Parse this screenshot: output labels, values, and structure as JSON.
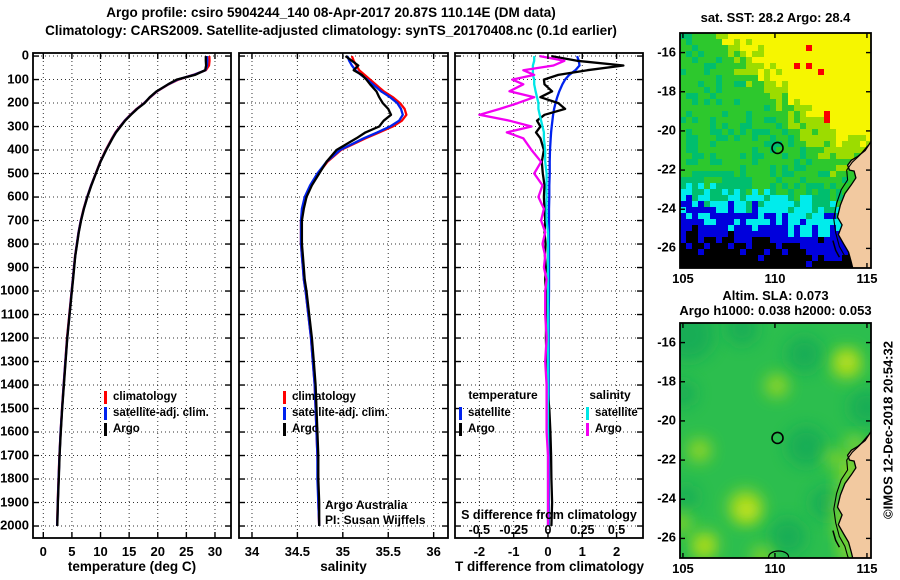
{
  "title": {
    "line1": "Argo profile: csiro 5904244_140 08-Apr-2017 20.87S 110.14E (DM data)",
    "line2": "Climatology: CARS2009. Satellite-adjusted climatology: synTS_20170408.nc (0.1d earlier)"
  },
  "watermark": "©IMOS 12-Dec-2018 20:54:32",
  "annotations": {
    "credit_line1": "Argo Australia",
    "credit_line2": "PI: Susan Wijffels",
    "s_axis_label": "S difference from climatology",
    "s_axis_ticks": [
      "-0.5",
      "-0.25",
      "0",
      "0.25",
      "0.5"
    ],
    "s_axis_tick_values": [
      -0.5,
      -0.25,
      0,
      0.25,
      0.5
    ]
  },
  "colors": {
    "climatology": "#ff0000",
    "satellite": "#0022ee",
    "argo": "#000000",
    "sat_salinity": "#00e6e6",
    "argo_salinity": "#f200f2",
    "land": "#f2c9a0",
    "map_sea_palette": [
      "#000000",
      "#0000dc",
      "#00ecec",
      "#00be6e",
      "#2dc82d",
      "#9cdc00",
      "#f6f600"
    ],
    "flag_red": "#fa0000",
    "sla_base": "#2cbe4e",
    "sla_teal": "#14ac56",
    "sla_ygreen": "#aadc1e",
    "sla_yellow": "#e2ea14"
  },
  "chart_data": {
    "type": "line",
    "orientation": "profile-vs-depth",
    "depth_ticks": [
      0,
      100,
      200,
      300,
      400,
      500,
      600,
      700,
      800,
      900,
      1000,
      1100,
      1200,
      1300,
      1400,
      1500,
      1600,
      1700,
      1800,
      1900,
      2000
    ],
    "depths": [
      0,
      20,
      40,
      60,
      80,
      100,
      120,
      150,
      175,
      200,
      225,
      250,
      275,
      300,
      325,
      350,
      400,
      450,
      500,
      550,
      600,
      650,
      700,
      750,
      800,
      850,
      900,
      950,
      1000,
      1100,
      1200,
      1300,
      1400,
      1500,
      1600,
      1700,
      1800,
      1900,
      2000
    ],
    "panels": [
      {
        "id": "temperature",
        "xlabel": "temperature (deg C)",
        "xtick_labels": [
          "0",
          "5",
          "10",
          "15",
          "20",
          "25",
          "30"
        ],
        "xtick_values": [
          0,
          5,
          10,
          15,
          20,
          25,
          30
        ],
        "xlim": [
          -1.8,
          32.8
        ],
        "legend": [
          {
            "label": "climatology",
            "color": "#ff0000"
          },
          {
            "label": "satellite-adj. clim.",
            "color": "#0022ee"
          },
          {
            "label": "Argo",
            "color": "#000000"
          }
        ],
        "series": [
          {
            "name": "climatology",
            "color": "#ff0000",
            "values": [
              29.0,
              29.05,
              28.95,
              28.4,
              26.2,
              23.6,
              21.9,
              19.9,
              18.7,
              17.6,
              16.3,
              15.2,
              14.2,
              13.4,
              12.6,
              12.0,
              10.9,
              9.95,
              9.15,
              8.35,
              7.65,
              7.05,
              6.55,
              6.15,
              5.85,
              5.55,
              5.35,
              5.15,
              4.95,
              4.55,
              4.15,
              3.85,
              3.55,
              3.27,
              3.02,
              2.82,
              2.66,
              2.52,
              2.42
            ]
          },
          {
            "name": "satellite-adj-clim",
            "color": "#0022ee",
            "values": [
              28.6,
              28.65,
              28.6,
              28.35,
              26.3,
              23.45,
              21.85,
              19.85,
              18.65,
              17.65,
              16.35,
              15.25,
              14.25,
              13.45,
              12.65,
              12.05,
              10.95,
              9.97,
              9.17,
              8.37,
              7.67,
              7.07,
              6.57,
              6.17,
              5.87,
              5.57,
              5.37,
              5.17,
              4.97,
              4.57,
              4.17,
              3.87,
              3.57,
              3.28,
              3.03,
              2.83,
              2.67,
              2.53,
              2.43
            ]
          },
          {
            "name": "argo",
            "color": "#000000",
            "values": [
              28.4,
              28.4,
              28.45,
              28.3,
              26.5,
              23.3,
              21.8,
              19.8,
              18.6,
              17.7,
              16.4,
              15.3,
              14.3,
              13.5,
              12.7,
              12.1,
              11.0,
              10.0,
              9.2,
              8.4,
              7.7,
              7.1,
              6.6,
              6.2,
              5.9,
              5.6,
              5.4,
              5.2,
              5.0,
              4.6,
              4.2,
              3.9,
              3.6,
              3.3,
              3.05,
              2.85,
              2.7,
              2.55,
              2.45
            ]
          }
        ]
      },
      {
        "id": "salinity",
        "xlabel": "salinity",
        "xtick_labels": [
          "34",
          "34.5",
          "35",
          "35.5",
          "36"
        ],
        "xtick_values": [
          34,
          34.5,
          35,
          35.5,
          36
        ],
        "xlim": [
          33.857,
          36.158
        ],
        "legend": [
          {
            "label": "climatology",
            "color": "#ff0000"
          },
          {
            "label": "satellite-adj. clim.",
            "color": "#0022ee"
          },
          {
            "label": "Argo",
            "color": "#000000"
          }
        ],
        "series": [
          {
            "name": "climatology",
            "color": "#ff0000",
            "values": [
              35.1,
              35.12,
              35.15,
              35.18,
              35.24,
              35.3,
              35.36,
              35.45,
              35.55,
              35.63,
              35.68,
              35.7,
              35.65,
              35.55,
              35.4,
              35.25,
              34.98,
              34.83,
              34.73,
              34.65,
              34.59,
              34.56,
              34.54,
              34.54,
              34.54,
              34.55,
              34.56,
              34.57,
              34.59,
              34.62,
              34.65,
              34.67,
              34.69,
              34.7,
              34.71,
              34.72,
              34.73,
              34.73,
              34.74
            ]
          },
          {
            "name": "satellite-adj-clim",
            "color": "#0022ee",
            "values": [
              35.05,
              35.07,
              35.1,
              35.14,
              35.2,
              35.27,
              35.33,
              35.42,
              35.52,
              35.6,
              35.64,
              35.66,
              35.62,
              35.52,
              35.38,
              35.23,
              34.97,
              34.82,
              34.72,
              34.64,
              34.58,
              34.55,
              34.54,
              34.54,
              34.54,
              34.55,
              34.56,
              34.57,
              34.59,
              34.62,
              34.65,
              34.67,
              34.69,
              34.7,
              34.71,
              34.72,
              34.72,
              34.73,
              34.74
            ]
          },
          {
            "name": "argo",
            "color": "#000000",
            "values": [
              35.03,
              35.1,
              35.17,
              35.12,
              35.21,
              35.26,
              35.3,
              35.37,
              35.4,
              35.44,
              35.5,
              35.53,
              35.45,
              35.4,
              35.25,
              35.15,
              34.93,
              34.82,
              34.74,
              34.66,
              34.6,
              34.57,
              34.55,
              34.55,
              34.55,
              34.56,
              34.57,
              34.58,
              34.6,
              34.63,
              34.66,
              34.68,
              34.7,
              34.71,
              34.72,
              34.73,
              34.73,
              34.74,
              34.74
            ]
          }
        ]
      },
      {
        "id": "difference",
        "xlabel": "T difference from climatology",
        "xtick_labels": [
          "-2",
          "-1",
          "0",
          "1",
          "2"
        ],
        "xtick_values": [
          -2,
          -1,
          0,
          1,
          2
        ],
        "xlim": [
          -2.71,
          2.77
        ],
        "legend_columns": [
          {
            "header": "temperature",
            "items": [
              {
                "label": "satellite",
                "color": "#0022ee"
              },
              {
                "label": "Argo",
                "color": "#000000"
              }
            ]
          },
          {
            "header": "salinity",
            "items": [
              {
                "label": "satellite",
                "color": "#00e6e6"
              },
              {
                "label": "Argo",
                "color": "#f200f2"
              }
            ]
          }
        ],
        "series": [
          {
            "name": "T-satellite-diff",
            "color": "#0022ee",
            "scale": 1,
            "values": [
              0.85,
              0.9,
              0.92,
              0.8,
              0.62,
              0.5,
              0.42,
              0.33,
              0.27,
              0.22,
              0.18,
              0.15,
              0.13,
              0.11,
              0.09,
              0.08,
              0.06,
              0.05,
              0.05,
              0.04,
              0.04,
              0.03,
              0.03,
              0.03,
              0.03,
              0.03,
              0.03,
              0.03,
              0.03,
              0.02,
              0.02,
              0.02,
              0.02,
              0.02,
              0.02,
              0.02,
              0.02,
              0.02,
              0.02
            ]
          },
          {
            "name": "T-argo-diff",
            "color": "#000000",
            "scale": 1,
            "values": [
              0.1,
              0.85,
              2.2,
              1.15,
              0.3,
              -0.12,
              -0.1,
              0.12,
              -0.22,
              0.3,
              0.5,
              -0.1,
              -0.32,
              -0.22,
              -0.35,
              -0.22,
              -0.12,
              -0.18,
              -0.15,
              -0.1,
              -0.12,
              -0.1,
              -0.08,
              -0.1,
              -0.07,
              -0.09,
              -0.06,
              -0.08,
              -0.06,
              -0.05,
              -0.06,
              -0.04,
              -0.03,
              0.04,
              0.07,
              0.09,
              0.1,
              0.12,
              0.1
            ]
          },
          {
            "name": "S-satellite-diff",
            "color": "#00e6e6",
            "scale": 4,
            "values": [
              -0.1,
              -0.1,
              -0.11,
              -0.11,
              -0.11,
              -0.1,
              -0.1,
              -0.09,
              -0.08,
              -0.07,
              -0.07,
              -0.06,
              -0.05,
              -0.04,
              -0.03,
              -0.03,
              -0.02,
              -0.02,
              -0.01,
              -0.01,
              -0.01,
              -0.01,
              -0.01,
              0,
              0,
              0,
              0,
              0,
              0,
              0,
              0,
              0,
              0,
              0,
              0,
              0,
              0,
              0,
              0
            ]
          },
          {
            "name": "S-argo-diff",
            "color": "#f200f2",
            "scale": 4,
            "values": [
              -0.06,
              0.12,
              0.04,
              -0.18,
              -0.1,
              -0.26,
              -0.18,
              -0.28,
              -0.1,
              -0.22,
              -0.35,
              -0.5,
              -0.28,
              -0.12,
              -0.3,
              -0.18,
              -0.12,
              -0.05,
              -0.1,
              -0.04,
              -0.07,
              -0.03,
              -0.05,
              -0.02,
              -0.04,
              -0.02,
              -0.03,
              -0.01,
              -0.02,
              -0.02,
              -0.01,
              -0.02,
              -0.01,
              -0.01,
              -0.01,
              0,
              0,
              0,
              0
            ]
          }
        ]
      }
    ]
  },
  "maps": {
    "ticks": {
      "x_labels": [
        "105",
        "110",
        "115"
      ],
      "x_values": [
        105,
        110,
        115
      ],
      "y_labels": [
        "-16",
        "-18",
        "-20",
        "-22",
        "-24",
        "-26"
      ],
      "y_values": [
        -16,
        -18,
        -20,
        -22,
        -24,
        -26
      ]
    },
    "marker": {
      "lon": 110.14,
      "lat": -20.87
    },
    "sst": {
      "title": "sat. SST: 28.2 Argo: 28.4"
    },
    "sla": {
      "title_line1": "Altim. SLA: 0.073",
      "title_line2": "Argo h1000: 0.038 h2000: 0.053"
    }
  }
}
